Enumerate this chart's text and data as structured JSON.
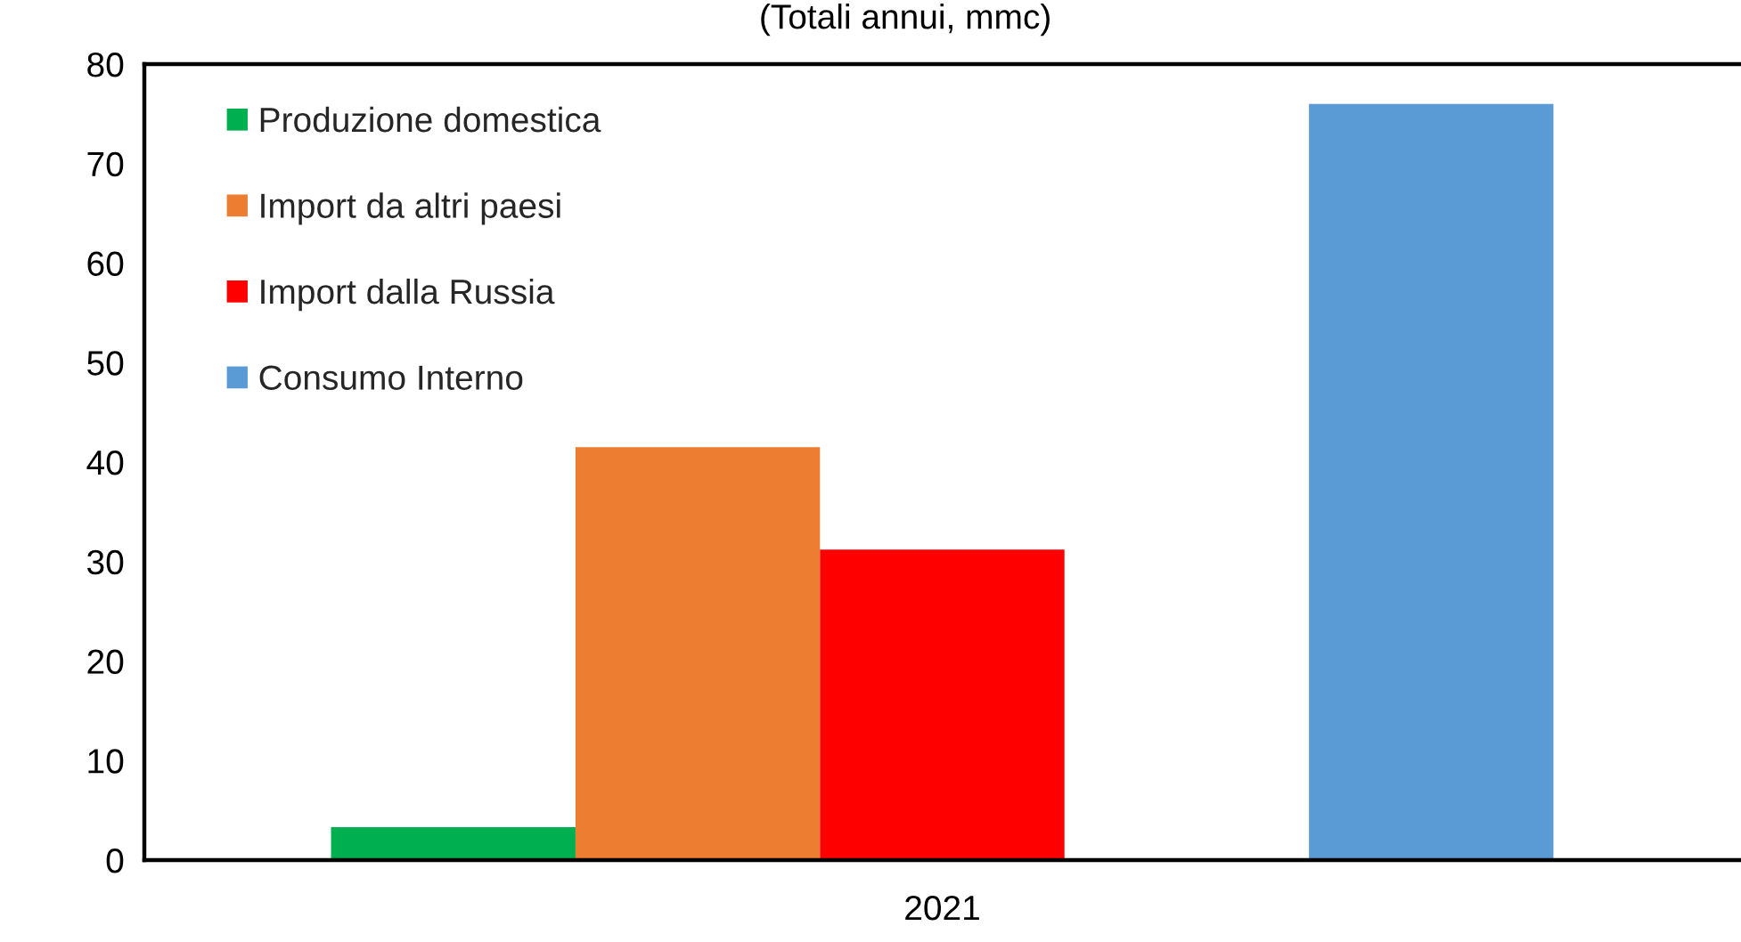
{
  "chart_data": {
    "type": "bar",
    "title": "(Totali annui, mmc)",
    "categories": [
      "2021"
    ],
    "series": [
      {
        "name": "Produzione domestica",
        "color": "#00b050",
        "values": [
          3.3
        ]
      },
      {
        "name": "Import da altri paesi",
        "color": "#ed7d31",
        "values": [
          41.5
        ]
      },
      {
        "name": "Import dalla Russia",
        "color": "#ff0000",
        "values": [
          31.2
        ]
      },
      {
        "values": [
          null
        ]
      },
      {
        "name": "Consumo Interno",
        "color": "#5b9bd5",
        "values": [
          76.0
        ]
      }
    ],
    "ylim": [
      0,
      80
    ],
    "yticks": [
      0,
      10,
      20,
      30,
      40,
      50,
      60,
      70,
      80
    ],
    "grid": false,
    "legend": "top left"
  }
}
